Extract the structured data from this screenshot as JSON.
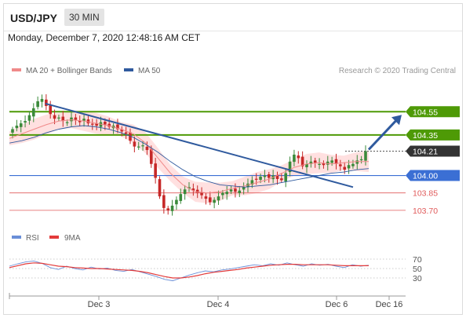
{
  "header": {
    "symbol": "USD/JPY",
    "timeframe": "30 MIN"
  },
  "timestamp": "Monday, December 7, 2020 12:48:16 AM CET",
  "legend": {
    "ma20_label": "MA 20 + Bollinger Bands",
    "ma50_label": "MA 50",
    "credit": "Research © 2020 Trading Central",
    "rsi_label": "RSI",
    "ma9_label": "9MA"
  },
  "colors": {
    "ma20": "#f08a8a",
    "ma50": "#2f5a9e",
    "resistance": "#4e9a06",
    "support_blue": "#3b6fd4",
    "support_red": "#e05a5a",
    "trendline": "#2f5a9e",
    "candle_up": "#3a8a3a",
    "candle_down": "#c62828",
    "band": "#ffd6d6",
    "rsi": "#6a8fd8",
    "rsi_ma": "#e33b3b",
    "current_tag": "#333333"
  },
  "chart_data": [
    {
      "type": "candlestick",
      "title": "USD/JPY 30 MIN",
      "xlabel": "",
      "ylabel": "",
      "x_ticks": [
        "Dec 3",
        "Dec 4",
        "Dec 6",
        "Dec 16"
      ],
      "ylim": [
        103.55,
        104.85
      ],
      "current_price": 104.21,
      "levels": [
        {
          "label": "104.55",
          "value": 104.55,
          "kind": "resistance"
        },
        {
          "label": "104.35",
          "value": 104.35,
          "kind": "resistance"
        },
        {
          "label": "104.21",
          "value": 104.21,
          "kind": "current"
        },
        {
          "label": "104.00",
          "value": 104.0,
          "kind": "support-strong"
        },
        {
          "label": "103.85",
          "value": 103.85,
          "kind": "support"
        },
        {
          "label": "103.70",
          "value": 103.7,
          "kind": "support"
        }
      ],
      "price_path": [
        104.4,
        104.43,
        104.45,
        104.47,
        104.52,
        104.58,
        104.64,
        104.66,
        104.6,
        104.53,
        104.49,
        104.5,
        104.47,
        104.46,
        104.5,
        104.48,
        104.46,
        104.49,
        104.45,
        104.44,
        104.43,
        104.46,
        104.44,
        104.42,
        104.43,
        104.4,
        104.38,
        104.36,
        104.3,
        104.25,
        104.25,
        104.26,
        104.22,
        104.1,
        103.98,
        103.82,
        103.72,
        103.7,
        103.74,
        103.79,
        103.84,
        103.88,
        103.9,
        103.87,
        103.85,
        103.83,
        103.8,
        103.77,
        103.79,
        103.82,
        103.85,
        103.86,
        103.88,
        103.86,
        103.87,
        103.9,
        103.93,
        103.96,
        103.97,
        103.99,
        104.0,
        103.98,
        104.0,
        103.97,
        103.96,
        104.02,
        104.12,
        104.18,
        104.15,
        104.08,
        104.1,
        104.12,
        104.11,
        104.1,
        104.09,
        104.12,
        104.13,
        104.1,
        104.08,
        104.05,
        104.09,
        104.1,
        104.13,
        104.14,
        104.21
      ],
      "ma20_path": [
        104.32,
        104.36,
        104.4,
        104.44,
        104.47,
        104.48,
        104.47,
        104.45,
        104.43,
        104.4,
        104.36,
        104.28,
        104.15,
        104.02,
        103.92,
        103.86,
        103.85,
        103.86,
        103.89,
        103.91,
        103.94,
        103.97,
        104.02,
        104.07,
        104.1,
        104.11,
        104.1,
        104.11,
        104.12,
        104.12
      ],
      "ma50_path": [
        104.28,
        104.3,
        104.33,
        104.37,
        104.4,
        104.42,
        104.43,
        104.42,
        104.4,
        104.37,
        104.33,
        104.27,
        104.2,
        104.12,
        104.05,
        103.99,
        103.95,
        103.92,
        103.91,
        103.9,
        103.91,
        103.92,
        103.94,
        103.96,
        103.98,
        104.0,
        104.02,
        104.03,
        104.05,
        104.06
      ],
      "trendline": {
        "from": 104.62,
        "to": 103.9
      },
      "forecast_arrow": {
        "from": 104.21,
        "to": 104.55
      }
    },
    {
      "type": "line",
      "title": "RSI",
      "ylim": [
        0,
        100
      ],
      "y_ticks": [
        "70",
        "50",
        "30"
      ],
      "series": [
        {
          "name": "RSI",
          "values": [
            55,
            60,
            64,
            66,
            61,
            52,
            48,
            55,
            50,
            47,
            53,
            49,
            51,
            46,
            44,
            48,
            43,
            38,
            33,
            27,
            24,
            30,
            36,
            41,
            45,
            43,
            47,
            49,
            52,
            55,
            58,
            56,
            60,
            57,
            62,
            58,
            55,
            60,
            57,
            59,
            55,
            52,
            58,
            55,
            57
          ]
        },
        {
          "name": "9MA",
          "values": [
            52,
            56,
            60,
            62,
            61,
            58,
            55,
            54,
            52,
            51,
            50,
            50,
            49,
            48,
            47,
            46,
            44,
            41,
            37,
            33,
            30,
            30,
            32,
            35,
            39,
            42,
            44,
            46,
            48,
            51,
            53,
            55,
            57,
            58,
            59,
            59,
            58,
            58,
            58,
            58,
            57,
            56,
            56,
            56,
            56
          ]
        }
      ]
    }
  ]
}
